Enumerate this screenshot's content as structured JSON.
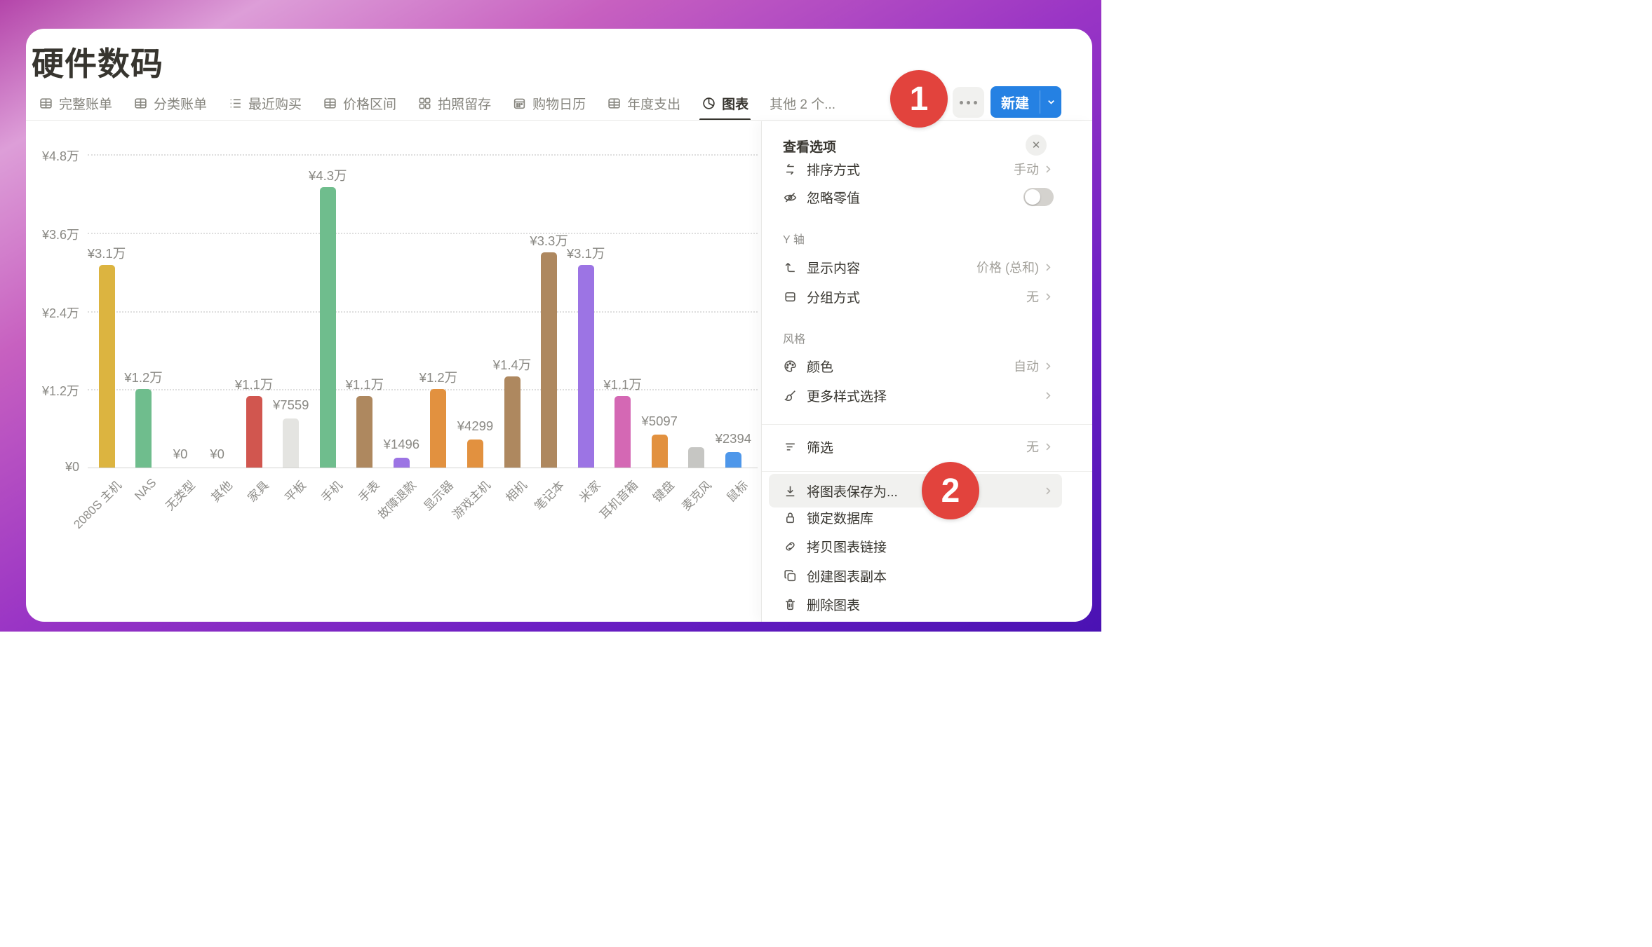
{
  "page": {
    "title": "硬件数码"
  },
  "tabs": {
    "items": [
      {
        "label": "完整账单",
        "icon": "table-icon",
        "active": false
      },
      {
        "label": "分类账单",
        "icon": "table-icon",
        "active": false
      },
      {
        "label": "最近购买",
        "icon": "list-icon",
        "active": false
      },
      {
        "label": "价格区间",
        "icon": "table-icon",
        "active": false
      },
      {
        "label": "拍照留存",
        "icon": "gallery-icon",
        "active": false
      },
      {
        "label": "购物日历",
        "icon": "calendar-icon",
        "active": false
      },
      {
        "label": "年度支出",
        "icon": "table-icon",
        "active": false
      },
      {
        "label": "图表",
        "icon": "pie-chart-icon",
        "active": true
      },
      {
        "label": "其他 2 个...",
        "icon": "",
        "active": false
      }
    ]
  },
  "toolbar": {
    "more_label": "···",
    "new_label": "新建"
  },
  "annotations": {
    "step1": "1",
    "step2": "2",
    "badge_color": "#e2433d"
  },
  "chart_data": {
    "type": "bar",
    "title": "",
    "xlabel": "",
    "ylabel": "",
    "categories": [
      "2080S 主机",
      "NAS",
      "无类型",
      "其他",
      "家具",
      "平板",
      "手机",
      "手表",
      "故障退款",
      "显示器",
      "游戏主机",
      "相机",
      "笔记本",
      "米家",
      "耳机音箱",
      "键盘",
      "麦克风",
      "鼠标"
    ],
    "values": [
      31000,
      12000,
      0,
      0,
      11000,
      7559,
      43000,
      11000,
      1496,
      12000,
      4299,
      14000,
      33000,
      31000,
      11000,
      5097,
      3150,
      2394
    ],
    "value_labels": [
      "¥3.1万",
      "¥1.2万",
      "¥0",
      "¥0",
      "¥1.1万",
      "¥7559",
      "¥4.3万",
      "¥1.1万",
      "¥1496",
      "¥1.2万",
      "¥4299",
      "¥1.4万",
      "¥3.3万",
      "¥3.1万",
      "¥1.1万",
      "¥5097",
      "",
      "¥2394"
    ],
    "bar_colors": [
      "#dcb440",
      "#6fbd8d",
      "#cccccc",
      "#cccccc",
      "#d1564f",
      "#e4e4e1",
      "#6fbd8d",
      "#ae885f",
      "#9c74e4",
      "#e2913f",
      "#e2913f",
      "#ae885f",
      "#ae885f",
      "#9c74e4",
      "#d468b4",
      "#e2913f",
      "#c6c6c3",
      "#4e97ea"
    ],
    "ylim": [
      0,
      48000
    ],
    "yticks": [
      {
        "value": 0,
        "label": "¥0"
      },
      {
        "value": 12000,
        "label": "¥1.2万"
      },
      {
        "value": 24000,
        "label": "¥2.4万"
      },
      {
        "value": 36000,
        "label": "¥3.6万"
      },
      {
        "value": 48000,
        "label": "¥4.8万"
      }
    ],
    "grid": "horizontal-dotted",
    "legend": "none"
  },
  "menu": {
    "header": "查看选项",
    "close_label": "✕",
    "sections": {
      "y_axis": "Y 轴",
      "style": "风格"
    },
    "rows": {
      "sort": {
        "icon": "sort-arrows-icon",
        "label": "排序方式",
        "value": "手动"
      },
      "ignore_zero": {
        "icon": "eye-off-icon",
        "label": "忽略零值",
        "toggle": "off"
      },
      "display": {
        "icon": "turn-up-arrow-icon",
        "label": "显示内容",
        "value": "价格 (总和)"
      },
      "group": {
        "icon": "group-rows-icon",
        "label": "分组方式",
        "value": "无"
      },
      "color": {
        "icon": "palette-icon",
        "label": "颜色",
        "value": "自动"
      },
      "more_styles": {
        "icon": "paintbrush-icon",
        "label": "更多样式选择",
        "value": ""
      },
      "filter": {
        "icon": "filter-lines-icon",
        "label": "筛选",
        "value": "无"
      },
      "save_as": {
        "icon": "download-icon",
        "label": "将图表保存为...",
        "value": ""
      },
      "lock": {
        "icon": "lock-icon",
        "label": "锁定数据库"
      },
      "copy_link": {
        "icon": "link-icon",
        "label": "拷贝图表链接"
      },
      "duplicate": {
        "icon": "duplicate-icon",
        "label": "创建图表副本"
      },
      "delete": {
        "icon": "trash-icon",
        "label": "删除图表"
      }
    }
  }
}
